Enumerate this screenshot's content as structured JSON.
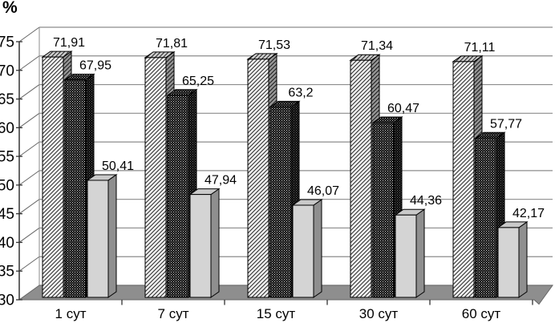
{
  "chart_data": {
    "type": "bar",
    "variant": "3d-column",
    "title": "",
    "ylabel": "%",
    "xlabel": "",
    "categories": [
      "1 сут",
      "7 сут",
      "15 сут",
      "30 сут",
      "60 сут"
    ],
    "series": [
      {
        "name": "series-1-hatched",
        "pattern": "diagonal-hatch",
        "values": [
          71.91,
          71.81,
          71.53,
          71.34,
          71.11
        ],
        "labels": [
          "71,91",
          "71,81",
          "71,53",
          "71,34",
          "71,11"
        ]
      },
      {
        "name": "series-2-dotted",
        "pattern": "dark-dotted",
        "values": [
          67.95,
          65.25,
          63.2,
          60.47,
          57.77
        ],
        "labels": [
          "67,95",
          "65,25",
          "63,2",
          "60,47",
          "57,77"
        ]
      },
      {
        "name": "series-3-plain",
        "pattern": "light-gray",
        "values": [
          50.41,
          47.94,
          46.07,
          44.36,
          42.17
        ],
        "labels": [
          "50,41",
          "47,94",
          "46,07",
          "44,36",
          "42,17"
        ]
      }
    ],
    "ylim": [
      30,
      75
    ],
    "ytick_step": 5,
    "ytick_labels": [
      "30",
      "35",
      "40",
      "45",
      "50",
      "55",
      "60",
      "65",
      "70",
      "75"
    ],
    "grid": true,
    "legend": "none",
    "colors": {
      "background": "#ffffff",
      "floor": "#8e8e8e",
      "gridline": "#8c8c8c",
      "frame": "#666666",
      "axis": "#333333",
      "bar_outline": "#000000",
      "hatch_bg": "#f2f2f2",
      "hatch_line": "#2a2a2a",
      "dots_bg": "#0a0a0a",
      "dots_dot": "#cfcfcf",
      "plain_front": "#d4d4d4",
      "plain_side": "#8f8f8f",
      "plain_top": "#c9c9c9",
      "text": "#000000"
    }
  }
}
